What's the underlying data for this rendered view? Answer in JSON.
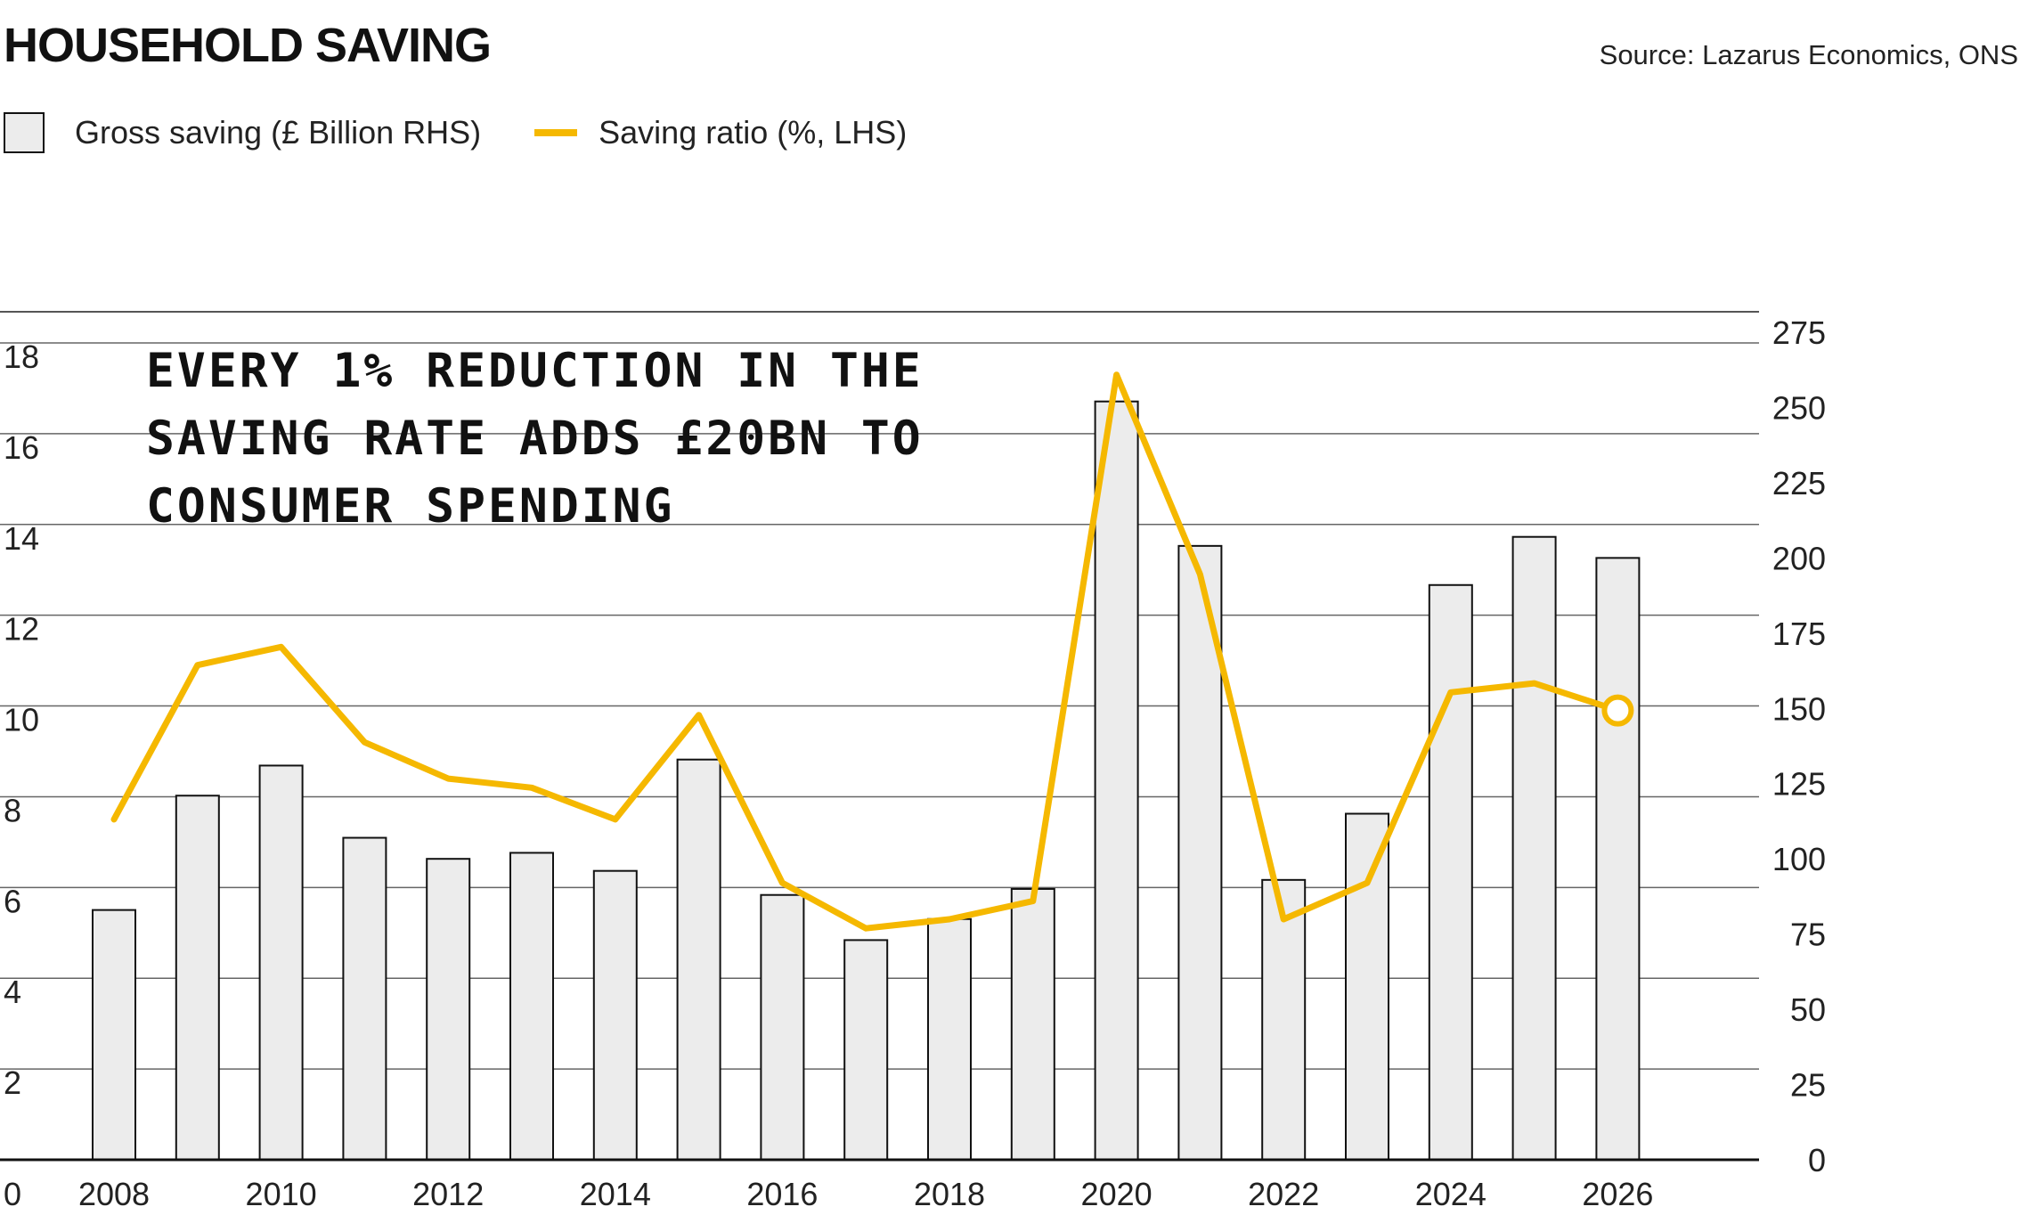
{
  "header": {
    "title": "HOUSEHOLD SAVING",
    "source": "Source: Lazarus Economics, ONS"
  },
  "legend": {
    "bars_label": "Gross saving (£ Billion RHS)",
    "line_label": "Saving ratio (%, LHS)"
  },
  "annotation": {
    "lines": [
      "EVERY 1% REDUCTION IN THE",
      "SAVING RATE ADDS £20BN TO",
      "CONSUMER SPENDING"
    ]
  },
  "colors": {
    "bar_fill": "#ececec",
    "bar_stroke": "#111111",
    "line": "#f5b800",
    "grid": "#666666"
  },
  "chart_data": {
    "type": "bar+line",
    "title": "HOUSEHOLD SAVING",
    "x": [
      2008,
      2009,
      2010,
      2011,
      2012,
      2013,
      2014,
      2015,
      2016,
      2017,
      2018,
      2019,
      2020,
      2021,
      2022,
      2023,
      2024,
      2025,
      2026
    ],
    "x_tick_labels": [
      "2008",
      "2010",
      "2012",
      "2014",
      "2016",
      "2018",
      "2020",
      "2022",
      "2024",
      "2026"
    ],
    "series": [
      {
        "name": "Gross saving (£ Billion RHS)",
        "type": "bar",
        "axis": "right",
        "values": [
          83,
          121,
          131,
          107,
          100,
          102,
          96,
          133,
          88,
          73,
          80,
          90,
          252,
          204,
          93,
          115,
          191,
          207,
          200
        ]
      },
      {
        "name": "Saving ratio (%, LHS)",
        "type": "line",
        "axis": "left",
        "values": [
          7.5,
          10.9,
          11.3,
          9.2,
          8.4,
          8.2,
          7.5,
          9.8,
          6.1,
          5.1,
          5.3,
          5.7,
          17.3,
          12.9,
          5.3,
          6.1,
          10.3,
          10.5,
          9.9
        ],
        "highlight_last": true
      }
    ],
    "left_axis": {
      "ylim": [
        0,
        18
      ],
      "ticks": [
        0,
        2,
        4,
        6,
        8,
        10,
        12,
        14,
        16,
        18
      ]
    },
    "right_axis": {
      "ylim": [
        0,
        275
      ],
      "ticks": [
        0,
        25,
        50,
        75,
        100,
        125,
        150,
        175,
        200,
        225,
        250,
        275
      ]
    },
    "grid": true,
    "legend_position": "top-left"
  }
}
